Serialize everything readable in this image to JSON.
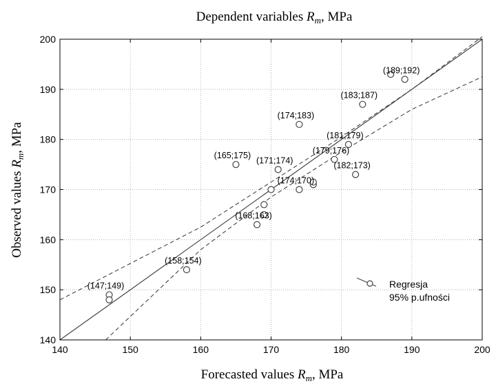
{
  "chart_data": {
    "type": "scatter",
    "title": {
      "prefix": "Dependent variables ",
      "var": "R",
      "sub": "m",
      "suffix": ", MPa"
    },
    "xlabel": {
      "prefix": "Forecasted values ",
      "var": "R",
      "sub": "m",
      "suffix": ", MPa"
    },
    "ylabel": {
      "prefix": "Observed values ",
      "var": "R",
      "sub": "m",
      "suffix": ", MPa"
    },
    "xlim": [
      140,
      200
    ],
    "ylim": [
      140,
      200
    ],
    "xticks": [
      140,
      150,
      160,
      170,
      180,
      190,
      200
    ],
    "yticks": [
      140,
      150,
      160,
      170,
      180,
      190,
      200
    ],
    "x_tick_labels": [
      "140",
      "150",
      "160",
      "170",
      "180",
      "190",
      "200"
    ],
    "y_tick_labels": [
      "140",
      "150",
      "160",
      "170",
      "180",
      "190",
      "200"
    ],
    "grid": true,
    "points": [
      {
        "x": 147,
        "y": 149
      },
      {
        "x": 147,
        "y": 148
      },
      {
        "x": 158,
        "y": 154
      },
      {
        "x": 165,
        "y": 175
      },
      {
        "x": 168,
        "y": 163
      },
      {
        "x": 169,
        "y": 165
      },
      {
        "x": 169,
        "y": 167
      },
      {
        "x": 170,
        "y": 170
      },
      {
        "x": 171,
        "y": 174
      },
      {
        "x": 174,
        "y": 170
      },
      {
        "x": 174,
        "y": 183
      },
      {
        "x": 176,
        "y": 171
      },
      {
        "x": 176,
        "y": 171.5
      },
      {
        "x": 179,
        "y": 176
      },
      {
        "x": 181,
        "y": 179
      },
      {
        "x": 182,
        "y": 173
      },
      {
        "x": 183,
        "y": 187
      },
      {
        "x": 187,
        "y": 193
      },
      {
        "x": 189,
        "y": 192
      }
    ],
    "annotations": [
      {
        "text": "(147;149)",
        "x": 147,
        "y": 149
      },
      {
        "text": "(158;154)",
        "x": 158,
        "y": 154
      },
      {
        "text": "(165;175)",
        "x": 165,
        "y": 175
      },
      {
        "text": "(168;163)",
        "x": 168,
        "y": 163
      },
      {
        "text": "(171;174)",
        "x": 171,
        "y": 174
      },
      {
        "text": "(174;170)",
        "x": 174,
        "y": 170
      },
      {
        "text": "(174;183)",
        "x": 174,
        "y": 183
      },
      {
        "text": "(179;176)",
        "x": 179,
        "y": 176
      },
      {
        "text": "(181;179)",
        "x": 181,
        "y": 179
      },
      {
        "text": "(182;173)",
        "x": 182,
        "y": 173
      },
      {
        "text": "(183;187)",
        "x": 183,
        "y": 187
      },
      {
        "text": "(189;192)",
        "x": 189,
        "y": 192
      }
    ],
    "regression_line": {
      "x": [
        140,
        200
      ],
      "y": [
        140,
        200
      ]
    },
    "confidence_band": {
      "upper": {
        "x": [
          140,
          160,
          170,
          180,
          190,
          200
        ],
        "y": [
          148,
          162.5,
          171.5,
          180.5,
          190,
          200.5
        ]
      },
      "lower": {
        "x": [
          146.5,
          160,
          170,
          180,
          190,
          200
        ],
        "y": [
          140,
          158,
          168.5,
          177.5,
          186,
          192.5
        ]
      }
    },
    "legend": {
      "position": "bottom-right",
      "entries": [
        "Regresja",
        "95% p.ufności"
      ]
    },
    "colors": {
      "line": "#444444",
      "grid": "#b0b0b0",
      "text": "#000000"
    }
  }
}
